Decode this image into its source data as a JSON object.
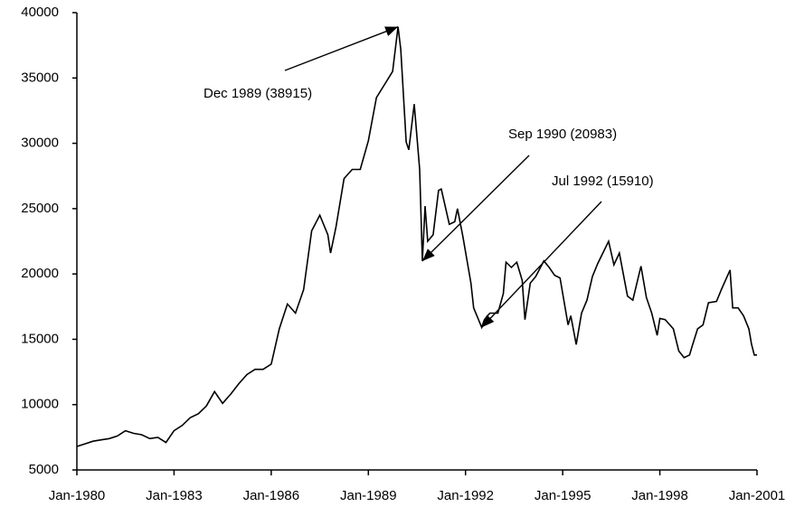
{
  "chart_data": {
    "type": "line",
    "color": "#000000",
    "x": [
      "Jan-1980",
      "Apr-1980",
      "Jul-1980",
      "Oct-1980",
      "Jan-1981",
      "Apr-1981",
      "Jul-1981",
      "Oct-1981",
      "Jan-1982",
      "Apr-1982",
      "Jul-1982",
      "Oct-1982",
      "Jan-1983",
      "Apr-1983",
      "Jul-1983",
      "Oct-1983",
      "Jan-1984",
      "Apr-1984",
      "Jul-1984",
      "Oct-1984",
      "Jan-1985",
      "Apr-1985",
      "Jul-1985",
      "Oct-1985",
      "Jan-1986",
      "Apr-1986",
      "Jul-1986",
      "Oct-1986",
      "Jan-1987",
      "Apr-1987",
      "Jul-1987",
      "Oct-1987",
      "Nov-1987",
      "Jan-1988",
      "Apr-1988",
      "Jul-1988",
      "Oct-1988",
      "Jan-1989",
      "Apr-1989",
      "Jul-1989",
      "Oct-1989",
      "Dec-1989",
      "Jan-1990",
      "Mar-1990",
      "Apr-1990",
      "Jun-1990",
      "Aug-1990",
      "Sep-1990",
      "Oct-1990",
      "Nov-1990",
      "Jan-1991",
      "Mar-1991",
      "Apr-1991",
      "Jul-1991",
      "Sep-1991",
      "Oct-1991",
      "Dec-1991",
      "Mar-1992",
      "Apr-1992",
      "Jul-1992",
      "Aug-1992",
      "Oct-1992",
      "Jan-1993",
      "Mar-1993",
      "Apr-1993",
      "Jun-1993",
      "Aug-1993",
      "Oct-1993",
      "Nov-1993",
      "Jan-1994",
      "Mar-1994",
      "Jun-1994",
      "Aug-1994",
      "Oct-1994",
      "Dec-1994",
      "Mar-1995",
      "Apr-1995",
      "Jun-1995",
      "Aug-1995",
      "Oct-1995",
      "Dec-1995",
      "Feb-1996",
      "Jun-1996",
      "Aug-1996",
      "Oct-1996",
      "Dec-1996",
      "Jan-1997",
      "Mar-1997",
      "Jun-1997",
      "Aug-1997",
      "Oct-1997",
      "Dec-1997",
      "Jan-1998",
      "Mar-1998",
      "Jun-1998",
      "Aug-1998",
      "Oct-1998",
      "Dec-1998",
      "Jan-1999",
      "Mar-1999",
      "May-1999",
      "Jul-1999",
      "Oct-1999",
      "Dec-1999",
      "Mar-2000",
      "Apr-2000",
      "Jun-2000",
      "Aug-2000",
      "Oct-2000",
      "Nov-2000",
      "Dec-2000",
      "Jan-2001"
    ],
    "values": [
      6800,
      7000,
      7200,
      7300,
      7400,
      7600,
      8000,
      7800,
      7700,
      7400,
      7500,
      7100,
      8000,
      8400,
      9000,
      9300,
      9900,
      11000,
      10100,
      10800,
      11600,
      12300,
      12700,
      12700,
      13100,
      15800,
      17700,
      17000,
      18800,
      23300,
      24500,
      23000,
      21600,
      23600,
      27300,
      28000,
      28000,
      30200,
      33500,
      34500,
      35500,
      38915,
      37200,
      30100,
      29500,
      33000,
      28000,
      20983,
      25200,
      22500,
      23000,
      26400,
      26500,
      23800,
      24000,
      25000,
      22900,
      19300,
      17400,
      15910,
      16500,
      17000,
      17000,
      18500,
      20900,
      20500,
      20900,
      19500,
      16500,
      19300,
      19800,
      21000,
      20500,
      19900,
      19700,
      16100,
      16800,
      14600,
      17000,
      18000,
      19800,
      20800,
      22500,
      20700,
      21600,
      19400,
      18300,
      18000,
      20600,
      18200,
      17000,
      15300,
      16600,
      16500,
      15800,
      14100,
      13600,
      13800,
      14500,
      15800,
      16100,
      17800,
      17900,
      18900,
      20300,
      17400,
      17400,
      16800,
      15800,
      14600,
      13800,
      13800
    ],
    "xlim": [
      "Jan-1980",
      "Jan-2001"
    ],
    "xticks": [
      "Jan-1980",
      "Jan-1983",
      "Jan-1986",
      "Jan-1989",
      "Jan-1992",
      "Jan-1995",
      "Jan-1998",
      "Jan-2001"
    ],
    "ylim": [
      5000,
      40000
    ],
    "yticks": [
      5000,
      10000,
      15000,
      20000,
      25000,
      30000,
      35000,
      40000
    ],
    "annotations": [
      {
        "text": "Dec 1989 (38915)",
        "x": "Dec-1989",
        "y": 38915
      },
      {
        "text": "Sep 1990 (20983)",
        "x": "Sep-1990",
        "y": 20983
      },
      {
        "text": "Jul 1992 (15910)",
        "x": "Jul-1992",
        "y": 15910
      }
    ]
  }
}
